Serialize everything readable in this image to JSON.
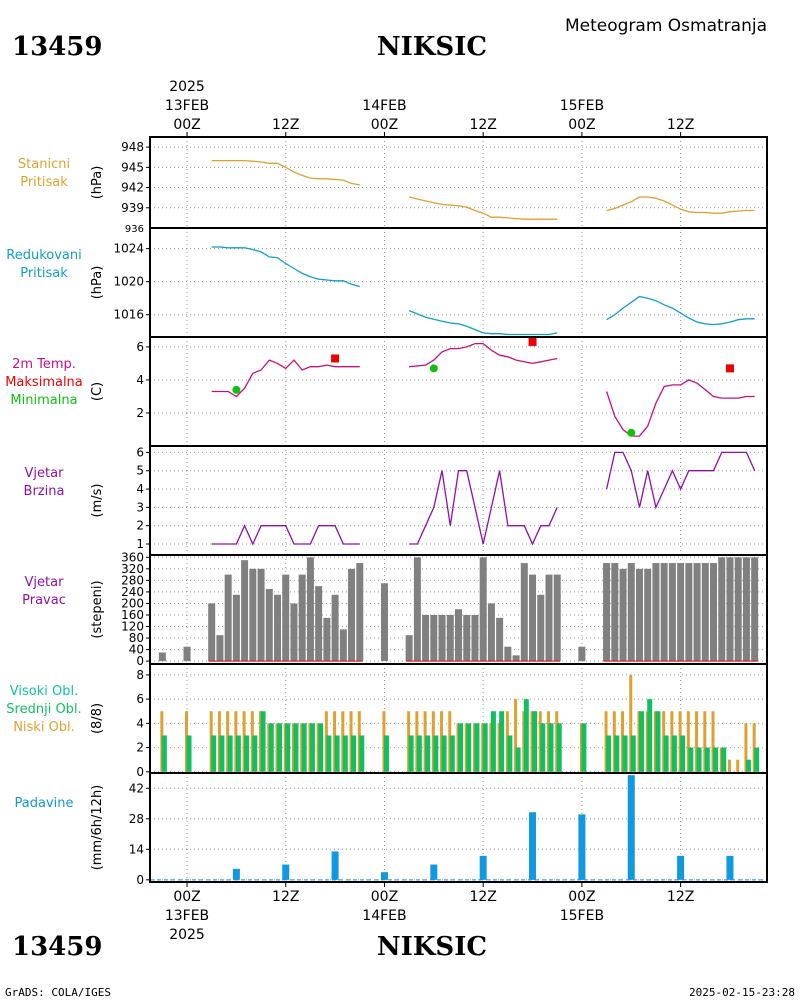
{
  "header": {
    "station_id": "13459",
    "station_name": "NIKSIC",
    "product": "Meteogram Osmatranja",
    "footer_left": "GrADS: COLA/IGES",
    "footer_right": "2025-02-15-23:28"
  },
  "colors": {
    "pressure": "#e0a030",
    "reduced": "#10a0c8",
    "temp": "#c81080",
    "max": "#ee0000",
    "min": "#10c010",
    "wind": "#9010a8",
    "dir_bar": "#808080",
    "cloud_high": "#10c0a0",
    "cloud_mid": "#10c060",
    "cloud_low": "#e0a030",
    "precip": "#1098e0"
  },
  "time_axis": {
    "top": [
      {
        "hour": 0,
        "label": "00Z",
        "line1": "13FEB",
        "line0": "2025"
      },
      {
        "hour": 12,
        "label": "12Z"
      },
      {
        "hour": 24,
        "label": "00Z",
        "line1": "14FEB"
      },
      {
        "hour": 36,
        "label": "12Z"
      },
      {
        "hour": 48,
        "label": "00Z",
        "line1": "15FEB"
      },
      {
        "hour": 60,
        "label": "12Z"
      }
    ],
    "bottom": [
      {
        "hour": 0,
        "label": "00Z",
        "line1": "13FEB",
        "line2": "2025"
      },
      {
        "hour": 12,
        "label": "12Z"
      },
      {
        "hour": 24,
        "label": "00Z",
        "line1": "14FEB"
      },
      {
        "hour": 36,
        "label": "12Z"
      },
      {
        "hour": 48,
        "label": "00Z",
        "line1": "15FEB"
      },
      {
        "hour": 60,
        "label": "12Z"
      }
    ]
  },
  "chart_data": [
    {
      "type": "line",
      "panel_labels": [
        "Stanicni",
        "Pritisak"
      ],
      "ylabel": "(hPa)",
      "yticks": [
        939,
        942,
        945,
        948
      ],
      "ylim": [
        936,
        949.5
      ],
      "bottom_tick": "936",
      "segments": [
        {
          "x": [
            3,
            5,
            7,
            9,
            10,
            11,
            12,
            13,
            14,
            15,
            16,
            17,
            18,
            19,
            20,
            21
          ],
          "y": [
            946,
            946,
            946,
            945.8,
            945.6,
            945.6,
            945,
            944.3,
            943.8,
            943.4,
            943.3,
            943.3,
            943.2,
            943.1,
            942.6,
            942.4
          ]
        },
        {
          "x": [
            27,
            29,
            31,
            32,
            33,
            34,
            35,
            36,
            37,
            38,
            39,
            40,
            41,
            42,
            43,
            44,
            45
          ],
          "y": [
            940.6,
            940,
            939.5,
            939.4,
            939.3,
            939.1,
            938.6,
            938.2,
            937.6,
            937.6,
            937.5,
            937.4,
            937.3,
            937.3,
            937.3,
            937.3,
            937.3
          ]
        },
        {
          "x": [
            51,
            52,
            53,
            54,
            55,
            56,
            57,
            58,
            59,
            60,
            61,
            62,
            63,
            64,
            65,
            66,
            67,
            68,
            69
          ],
          "y": [
            938.6,
            938.9,
            939.4,
            939.9,
            940.6,
            940.6,
            940.4,
            940,
            939.4,
            938.8,
            938.4,
            938.3,
            938.3,
            938.2,
            938.2,
            938.4,
            938.5,
            938.6,
            938.6
          ]
        }
      ]
    },
    {
      "type": "line",
      "panel_labels": [
        "Redukovani",
        "Pritisak"
      ],
      "ylabel": "(hPa)",
      "yticks": [
        1016,
        1020,
        1024
      ],
      "ylim": [
        1013.3,
        1026.5
      ],
      "segments": [
        {
          "x": [
            3,
            4,
            5,
            6,
            7,
            8,
            9,
            10,
            11,
            12,
            13,
            14,
            15,
            16,
            17,
            18,
            19,
            20,
            21
          ],
          "y": [
            1024.2,
            1024.2,
            1024.1,
            1024.1,
            1024.1,
            1023.9,
            1023.6,
            1023,
            1022.9,
            1022.2,
            1021.6,
            1021,
            1020.6,
            1020.3,
            1020.2,
            1020.1,
            1020.1,
            1019.7,
            1019.4
          ]
        },
        {
          "x": [
            27,
            29,
            31,
            32,
            33,
            34,
            35,
            36,
            37,
            38,
            39,
            40,
            41,
            42,
            43,
            44,
            45
          ],
          "y": [
            1016.5,
            1015.7,
            1015.2,
            1015,
            1014.9,
            1014.6,
            1014.2,
            1013.8,
            1013.7,
            1013.7,
            1013.6,
            1013.6,
            1013.6,
            1013.6,
            1013.6,
            1013.6,
            1013.8
          ]
        },
        {
          "x": [
            51,
            52,
            53,
            54,
            55,
            56,
            57,
            58,
            59,
            60,
            61,
            62,
            63,
            64,
            65,
            66,
            67,
            68,
            69
          ],
          "y": [
            1015.4,
            1016,
            1016.8,
            1017.5,
            1018.2,
            1018,
            1017.7,
            1017.2,
            1016.8,
            1016.2,
            1015.6,
            1015.1,
            1014.9,
            1014.8,
            1014.9,
            1015.1,
            1015.4,
            1015.5,
            1015.5
          ]
        }
      ]
    },
    {
      "type": "line",
      "panel_labels": [
        "2m Temp.",
        "Maksimalna",
        "Minimalna"
      ],
      "ylabel": "(C)",
      "yticks": [
        2,
        4,
        6
      ],
      "ylim": [
        0,
        6.6
      ],
      "segments": [
        {
          "x": [
            3,
            4,
            5,
            6,
            7,
            8,
            9,
            10,
            11,
            12,
            13,
            14,
            15,
            16,
            17,
            18,
            19,
            20,
            21
          ],
          "y": [
            3.3,
            3.3,
            3.3,
            3.0,
            3.5,
            4.4,
            4.6,
            5.2,
            5.0,
            4.7,
            5.2,
            4.6,
            4.8,
            4.8,
            4.9,
            4.8,
            4.8,
            4.8,
            4.8
          ]
        },
        {
          "x": [
            27,
            29,
            30,
            31,
            32,
            33,
            34,
            35,
            36,
            37,
            38,
            39,
            40,
            41,
            42,
            43,
            44,
            45
          ],
          "y": [
            4.8,
            4.9,
            5.2,
            5.7,
            5.9,
            5.9,
            6.0,
            6.2,
            6.2,
            5.8,
            5.5,
            5.4,
            5.2,
            5.1,
            5.0,
            5.1,
            5.2,
            5.3
          ]
        },
        {
          "x": [
            51,
            52,
            53,
            54,
            55,
            56,
            57,
            58,
            59,
            60,
            61,
            62,
            63,
            64,
            65,
            66,
            67,
            68,
            69
          ],
          "y": [
            3.3,
            1.8,
            1.0,
            0.6,
            0.6,
            1.2,
            2.6,
            3.6,
            3.7,
            3.7,
            4.0,
            3.8,
            3.4,
            3.0,
            2.9,
            2.9,
            2.9,
            3.0,
            3.0
          ]
        }
      ],
      "max_points": {
        "x": [
          18,
          42,
          66
        ],
        "y": [
          5.3,
          6.3,
          4.7
        ]
      },
      "min_points": {
        "x": [
          6,
          30,
          54
        ],
        "y": [
          3.4,
          4.7,
          0.8
        ]
      }
    },
    {
      "type": "line",
      "panel_labels": [
        "Vjetar",
        "Brzina"
      ],
      "ylabel": "(m/s)",
      "yticks": [
        1,
        2,
        3,
        4,
        5,
        6
      ],
      "ylim": [
        0.4,
        6.35
      ],
      "segments": [
        {
          "x": [
            3,
            4,
            5,
            6,
            7,
            8,
            9,
            10,
            11,
            12,
            13,
            14,
            15,
            16,
            17,
            18,
            19,
            20,
            21
          ],
          "y": [
            1,
            1,
            1,
            1,
            2,
            1,
            2,
            2,
            2,
            2,
            1,
            1,
            1,
            2,
            2,
            2,
            1,
            1,
            1
          ]
        },
        {
          "x": [
            27,
            28,
            29,
            30,
            31,
            32,
            33,
            34,
            35,
            36,
            37,
            38,
            39,
            40,
            41,
            42,
            43,
            44,
            45
          ],
          "y": [
            1,
            1,
            2,
            3,
            5,
            2,
            5,
            5,
            3,
            1,
            3,
            5,
            2,
            2,
            2,
            1,
            2,
            2,
            3
          ]
        },
        {
          "x": [
            51,
            52,
            53,
            54,
            55,
            56,
            57,
            58,
            59,
            60,
            61,
            62,
            63,
            64,
            65,
            66,
            67,
            68,
            69
          ],
          "y": [
            4,
            6,
            6,
            5,
            3,
            5,
            3,
            4,
            5,
            4,
            5,
            5,
            5,
            5,
            6,
            6,
            6,
            6,
            5
          ]
        }
      ]
    },
    {
      "type": "bar",
      "panel_labels": [
        "Vjetar",
        "Pravac"
      ],
      "ylabel": "(stepeni)",
      "yticks": [
        0,
        40,
        80,
        120,
        160,
        200,
        240,
        280,
        320,
        360
      ],
      "ylim": [
        -10,
        368
      ],
      "x": [
        -3,
        0,
        3,
        4,
        5,
        6,
        7,
        8,
        9,
        10,
        11,
        12,
        13,
        14,
        15,
        16,
        17,
        18,
        19,
        20,
        21,
        24,
        27,
        28,
        29,
        30,
        31,
        32,
        33,
        34,
        35,
        36,
        37,
        38,
        39,
        40,
        41,
        42,
        43,
        44,
        45,
        48,
        51,
        52,
        53,
        54,
        55,
        56,
        57,
        58,
        59,
        60,
        61,
        62,
        63,
        64,
        65,
        66,
        67,
        68,
        69
      ],
      "values": [
        30,
        50,
        200,
        90,
        300,
        230,
        350,
        320,
        320,
        250,
        230,
        300,
        200,
        300,
        360,
        260,
        150,
        230,
        110,
        320,
        340,
        270,
        90,
        360,
        160,
        160,
        160,
        160,
        180,
        160,
        160,
        360,
        200,
        150,
        50,
        20,
        340,
        300,
        230,
        300,
        300,
        50,
        340,
        340,
        320,
        340,
        320,
        320,
        340,
        340,
        340,
        340,
        340,
        340,
        340,
        340,
        360,
        360,
        360,
        360,
        360
      ]
    },
    {
      "type": "bar",
      "panel_labels": [
        "Visoki Obl.",
        "Srednji Obl.",
        "Niski Obl."
      ],
      "ylabel": "(8/8)",
      "yticks": [
        0,
        2,
        4,
        6,
        8
      ],
      "ylim": [
        -0.1,
        8.9
      ],
      "x": [
        -3,
        0,
        3,
        4,
        5,
        6,
        7,
        8,
        9,
        10,
        11,
        12,
        13,
        14,
        15,
        16,
        17,
        18,
        19,
        20,
        21,
        24,
        27,
        28,
        29,
        30,
        31,
        32,
        33,
        34,
        35,
        36,
        37,
        38,
        39,
        40,
        41,
        42,
        43,
        44,
        45,
        48,
        51,
        52,
        53,
        54,
        55,
        56,
        57,
        58,
        59,
        60,
        61,
        62,
        63,
        64,
        65,
        66,
        67,
        68,
        69
      ],
      "series": [
        {
          "name": "Niski Obl.",
          "values": [
            5,
            5,
            5,
            5,
            5,
            5,
            5,
            5,
            5,
            4,
            4,
            4,
            4,
            4,
            4,
            4,
            5,
            5,
            5,
            5,
            5,
            5,
            5,
            5,
            5,
            5,
            5,
            5,
            4,
            4,
            4,
            4,
            4,
            4,
            5,
            6,
            5,
            5,
            5,
            5,
            5,
            4,
            5,
            5,
            5,
            8,
            5,
            5,
            5,
            5,
            5,
            5,
            5,
            5,
            5,
            5,
            2,
            1,
            1,
            4,
            4
          ]
        },
        {
          "name": "Srednji Obl.",
          "values": [
            3,
            3,
            3,
            3,
            3,
            3,
            3,
            3,
            5,
            4,
            4,
            4,
            4,
            4,
            4,
            4,
            3,
            3,
            3,
            3,
            3,
            3,
            3,
            3,
            3,
            3,
            3,
            3,
            4,
            4,
            4,
            4,
            5,
            5,
            3,
            2,
            6,
            5,
            4,
            4,
            4,
            4,
            3,
            3,
            3,
            3,
            5,
            6,
            5,
            3,
            3,
            3,
            2,
            2,
            2,
            2,
            2,
            0,
            0,
            1,
            2
          ]
        },
        {
          "name": "Visoki Obl.",
          "values": [
            0,
            0,
            0,
            0,
            0,
            0,
            0,
            0,
            0,
            0,
            0,
            0,
            0,
            0,
            0,
            0,
            0,
            0,
            0,
            0,
            0,
            0,
            0,
            0,
            0,
            0,
            0,
            0,
            0,
            0,
            0,
            0,
            0,
            0,
            0,
            0,
            0,
            0,
            0,
            0,
            0,
            0,
            0,
            0,
            0,
            0,
            0,
            0,
            0,
            0,
            0,
            0,
            0,
            0,
            0,
            0,
            0,
            0,
            0,
            0,
            0
          ]
        }
      ]
    },
    {
      "type": "bar",
      "panel_labels": [
        "Padavine"
      ],
      "ylabel": "(mm/6h/12h)",
      "yticks": [
        0,
        14,
        28,
        42
      ],
      "ylim": [
        -1,
        49
      ],
      "x": [
        6,
        12,
        18,
        24,
        30,
        36,
        42,
        48,
        54,
        60,
        66
      ],
      "values": [
        5,
        7,
        13,
        3.5,
        7,
        11,
        31,
        30,
        48,
        11,
        11
      ]
    }
  ]
}
